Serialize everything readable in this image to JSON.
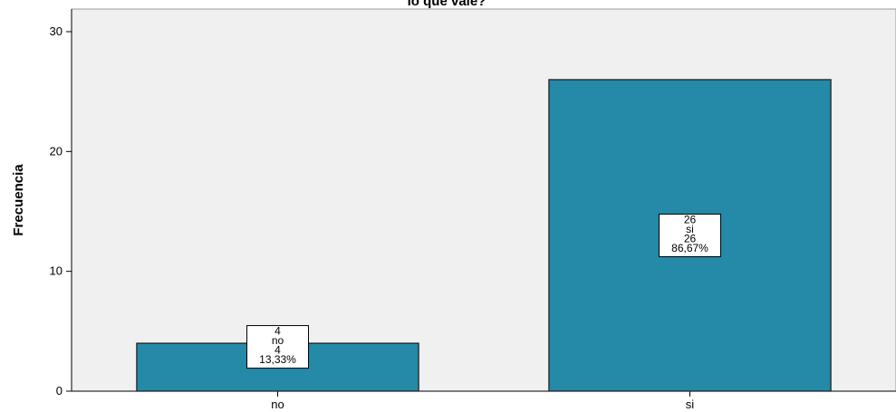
{
  "chart_data": {
    "type": "bar",
    "title": "lo que vale?",
    "xlabel": "",
    "ylabel": "Frecuencia",
    "categories": [
      "no",
      "si"
    ],
    "values": [
      4,
      26
    ],
    "ylim": [
      0,
      30
    ],
    "yticks": [
      0,
      10,
      20,
      30
    ],
    "grid": false,
    "bar_color": "#2589a8",
    "plot_background": "#f0f0f0",
    "data_labels": [
      {
        "lines": [
          "4",
          "no",
          "4",
          "13,33%"
        ]
      },
      {
        "lines": [
          "26",
          "si",
          "26",
          "86,67%"
        ]
      }
    ]
  }
}
